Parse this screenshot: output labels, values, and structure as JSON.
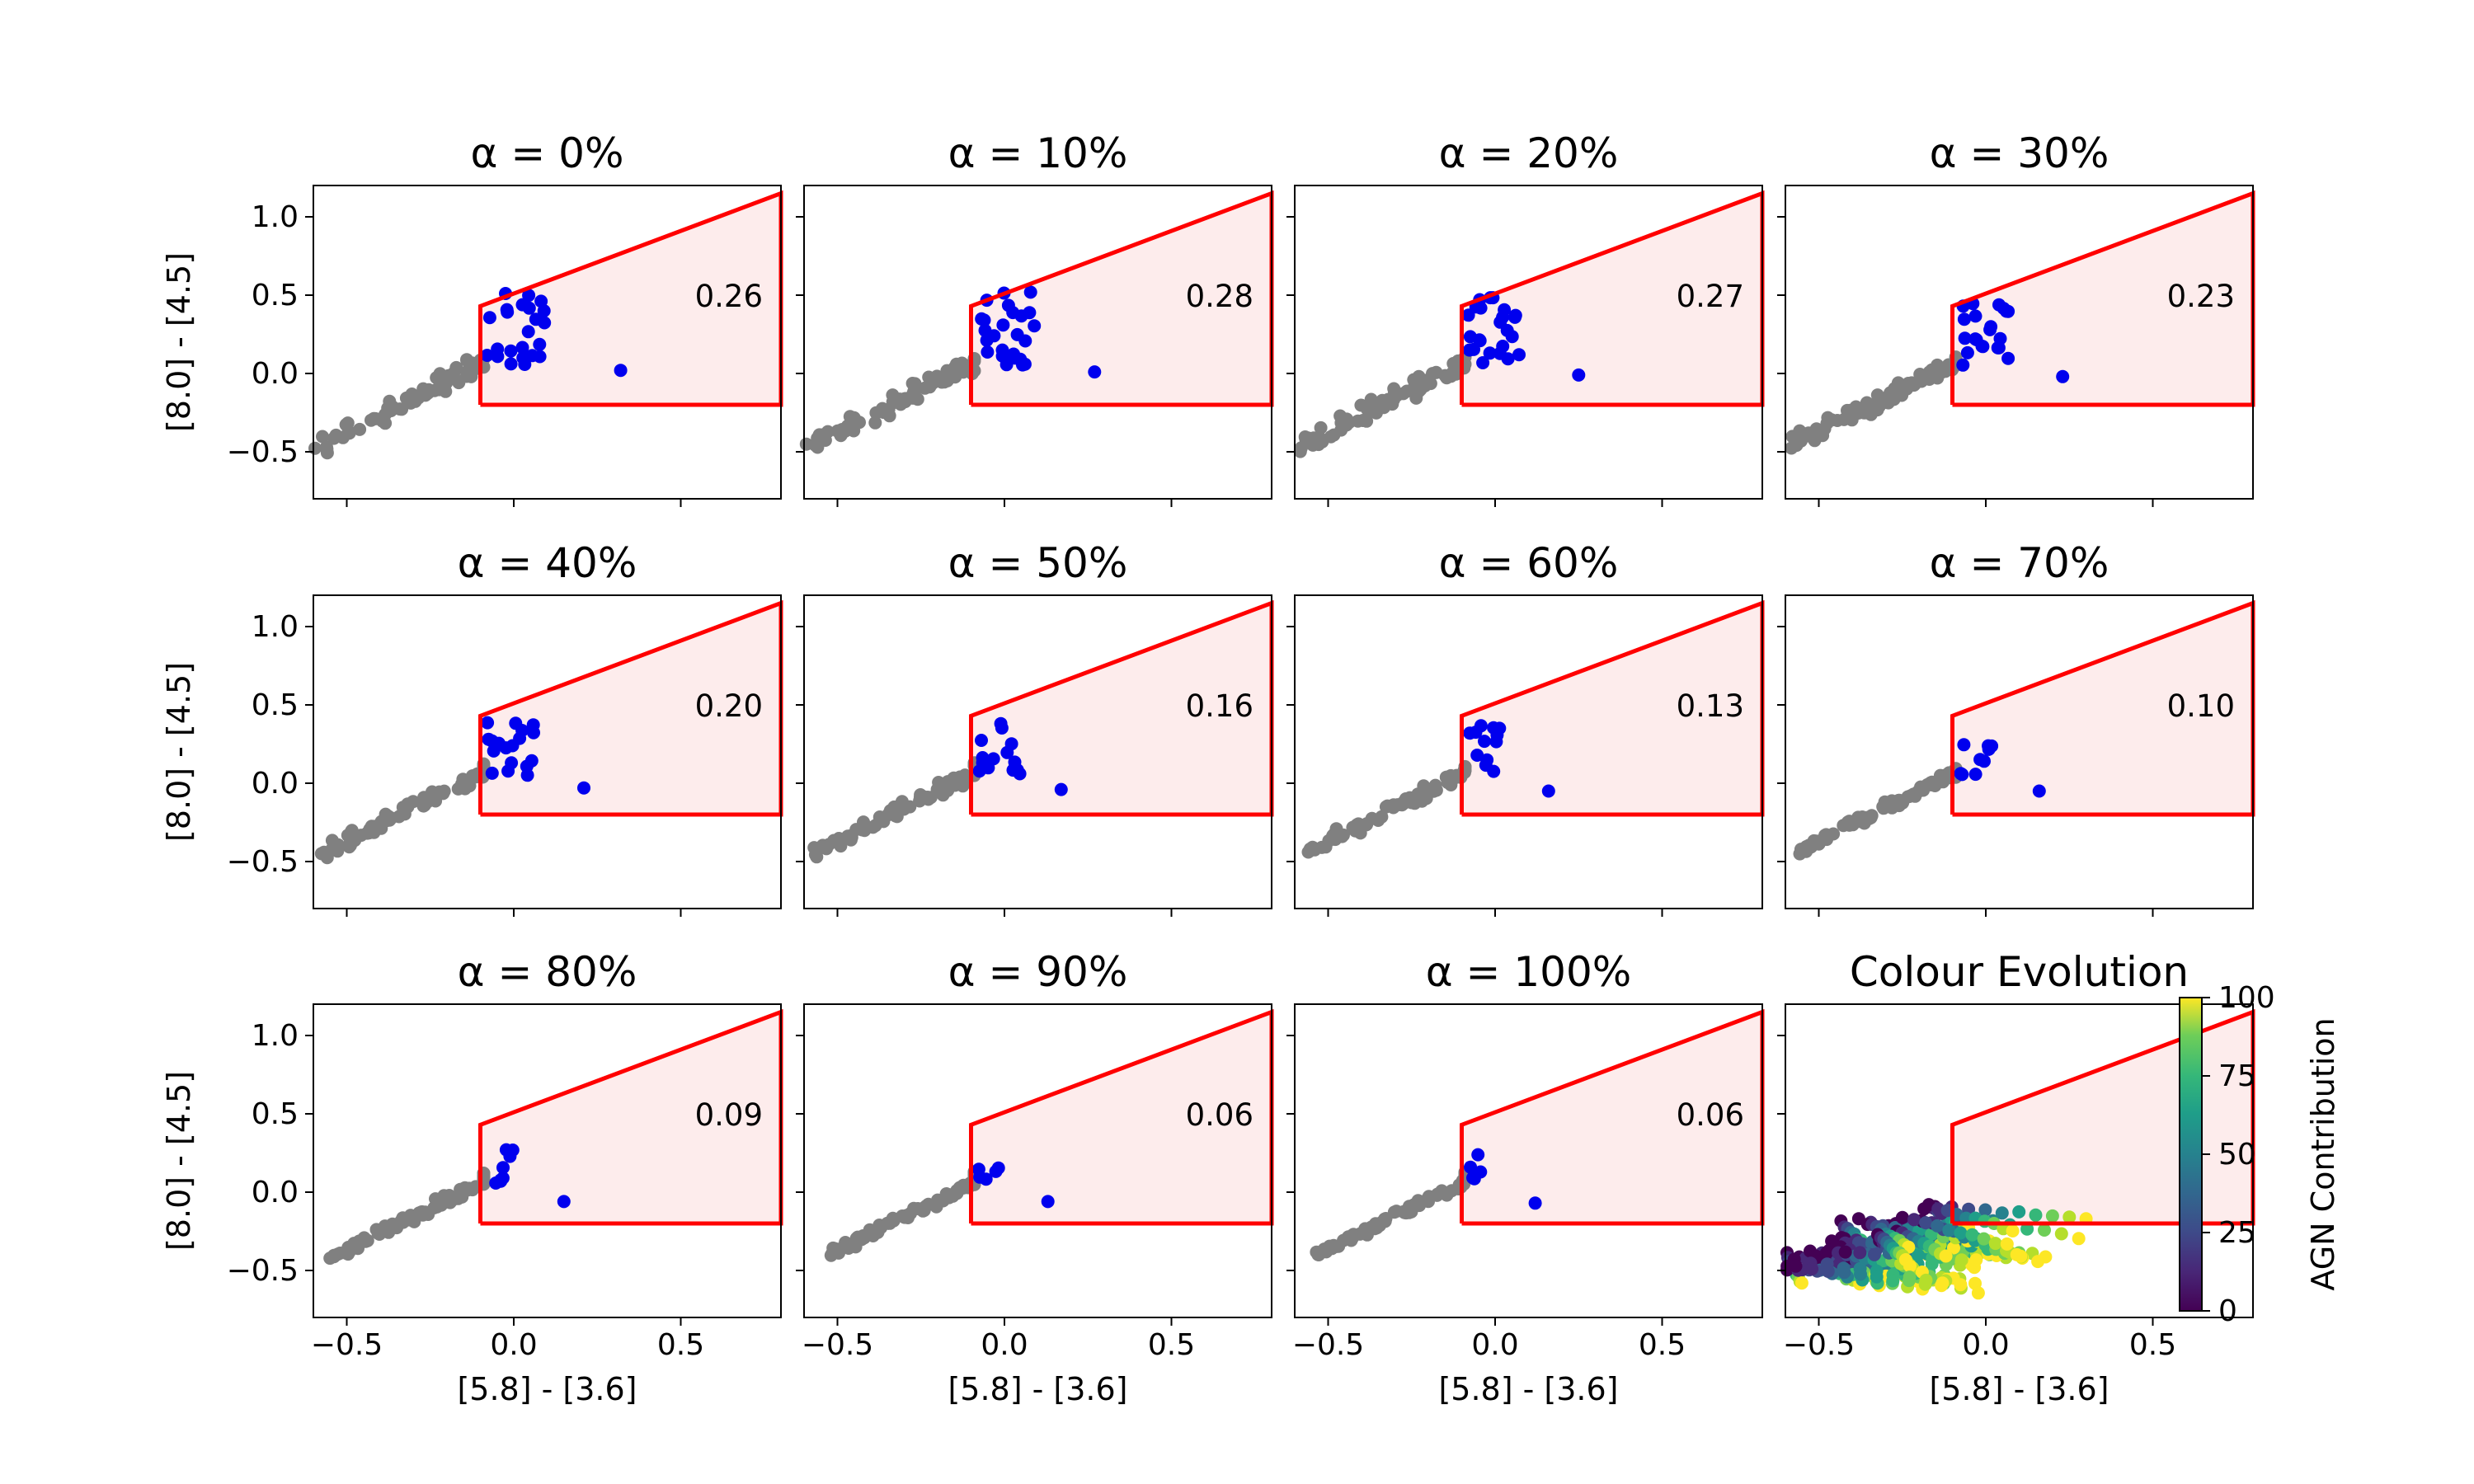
{
  "figure": {
    "panels": [
      {
        "title": "α = 0%",
        "fraction": "0.26"
      },
      {
        "title": "α = 10%",
        "fraction": "0.28"
      },
      {
        "title": "α = 20%",
        "fraction": "0.27"
      },
      {
        "title": "α = 30%",
        "fraction": "0.23"
      },
      {
        "title": "α = 40%",
        "fraction": "0.20"
      },
      {
        "title": "α = 50%",
        "fraction": "0.16"
      },
      {
        "title": "α = 60%",
        "fraction": "0.13"
      },
      {
        "title": "α = 70%",
        "fraction": "0.10"
      },
      {
        "title": "α = 80%",
        "fraction": "0.09"
      },
      {
        "title": "α = 90%",
        "fraction": "0.06"
      },
      {
        "title": "α = 100%",
        "fraction": "0.06"
      },
      {
        "title": "Colour Evolution",
        "fraction": ""
      }
    ],
    "xlabel": "[5.8] - [3.6]",
    "ylabel": "[8.0] - [4.5]",
    "colorbar_label": "AGN Contribution",
    "colorbar_ticks": [
      "0",
      "25",
      "50",
      "75",
      "100"
    ],
    "xticks": [
      "−0.5",
      "0.0",
      "0.5"
    ],
    "yticks": [
      "1.0",
      "0.5",
      "0.0",
      "−0.5"
    ]
  },
  "colors": {
    "selection_box": "#ff0000",
    "selection_fill": "#fdecec",
    "outside_points": "#808080",
    "inside_points": "#0000ee",
    "colormap": "viridis"
  },
  "chart_data": {
    "type": "scatter",
    "xlim": [
      -0.6,
      0.8
    ],
    "ylim": [
      -0.8,
      1.2
    ],
    "xticks": [
      -0.5,
      0.0,
      0.5
    ],
    "yticks": [
      -0.5,
      0.0,
      0.5,
      1.0
    ],
    "selection_region": [
      [
        -0.1,
        -0.2
      ],
      [
        0.8,
        -0.2
      ],
      [
        0.8,
        1.15
      ],
      [
        -0.1,
        0.43
      ],
      [
        -0.1,
        -0.2
      ]
    ],
    "alpha_percent": [
      0,
      10,
      20,
      30,
      40,
      50,
      60,
      70,
      80,
      90,
      100
    ],
    "selected_fraction": [
      0.26,
      0.28,
      0.27,
      0.23,
      0.2,
      0.16,
      0.13,
      0.1,
      0.09,
      0.06,
      0.06
    ],
    "outlier_point": [
      [
        0.32,
        0.02
      ],
      [
        0.27,
        0.01
      ],
      [
        0.25,
        -0.01
      ],
      [
        0.23,
        -0.02
      ],
      [
        0.21,
        -0.03
      ],
      [
        0.17,
        -0.04
      ],
      [
        0.16,
        -0.05
      ],
      [
        0.16,
        -0.05
      ],
      [
        0.15,
        -0.06
      ],
      [
        0.13,
        -0.06
      ],
      [
        0.12,
        -0.07
      ]
    ],
    "colorbar": {
      "label": "AGN Contribution",
      "range": [
        0,
        100
      ],
      "ticks": [
        0,
        25,
        50,
        75,
        100
      ]
    }
  }
}
